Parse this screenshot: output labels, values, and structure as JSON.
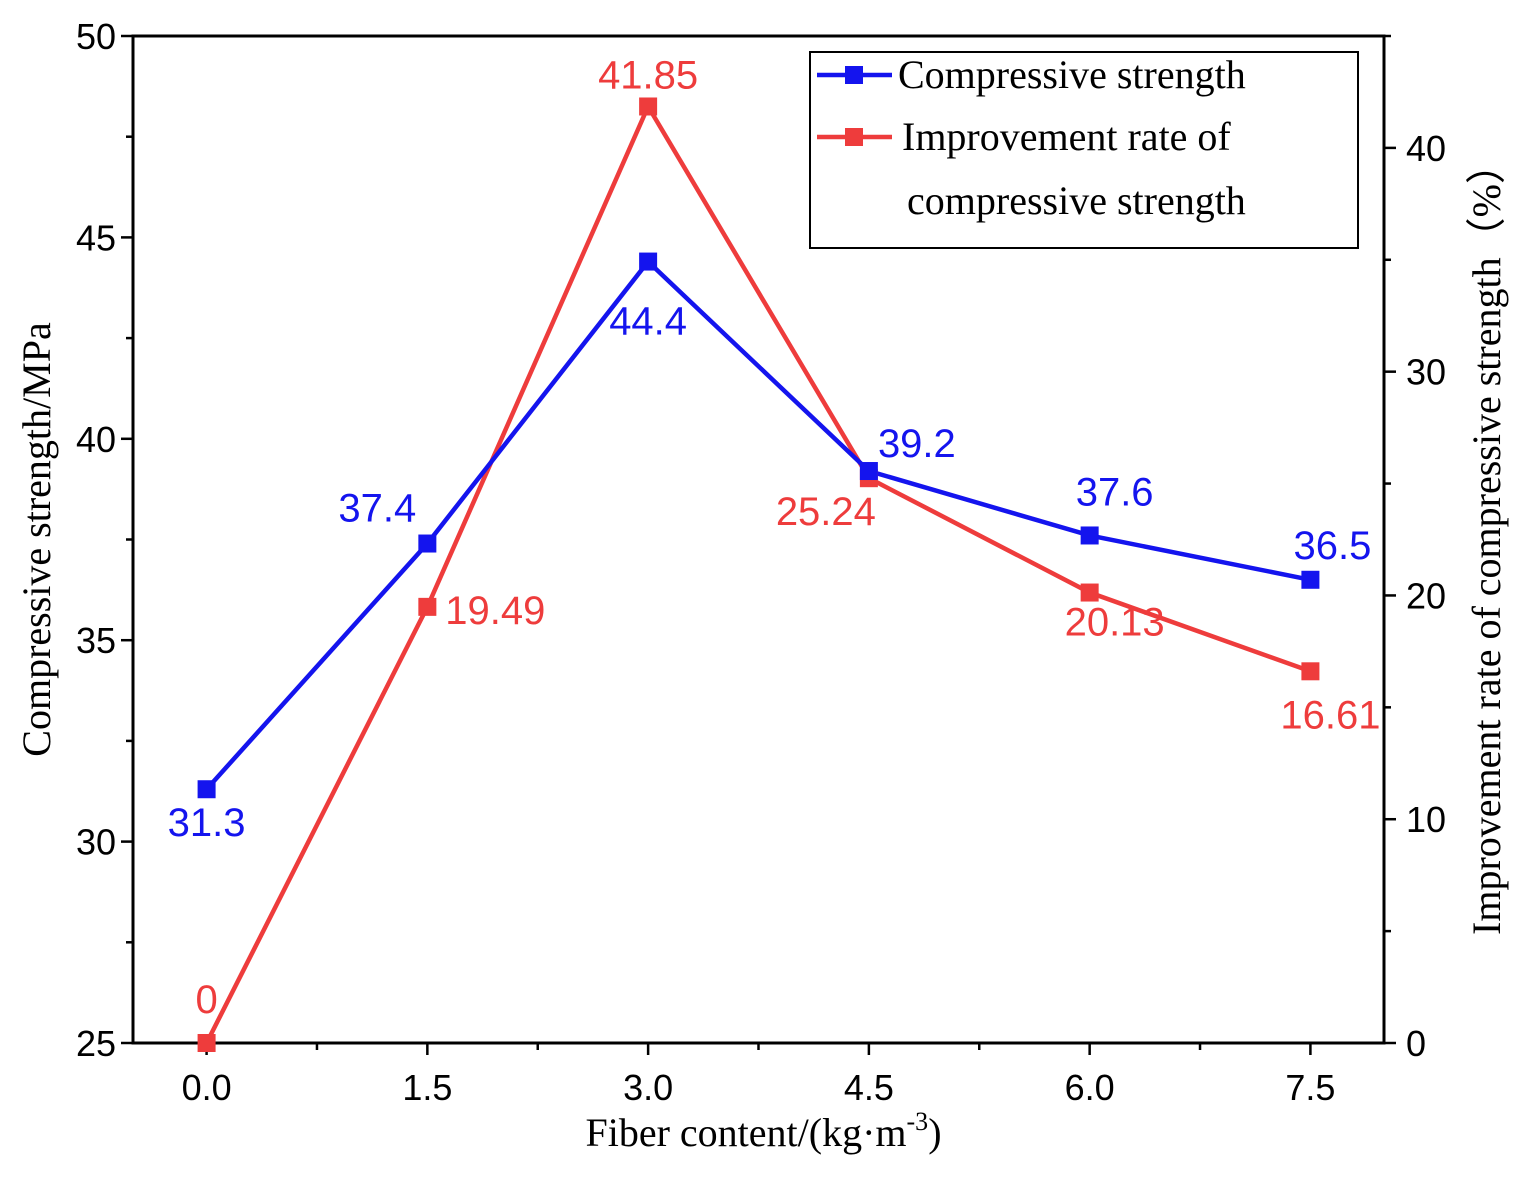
{
  "chart_data": {
    "type": "line",
    "x": [
      0.0,
      1.5,
      3.0,
      4.5,
      6.0,
      7.5
    ],
    "x_tick_labels": [
      "0.0",
      "1.5",
      "3.0",
      "4.5",
      "6.0",
      "7.5"
    ],
    "xlim": [
      -0.5,
      8.0
    ],
    "xlabel_main": "Fiber content/(kg·m",
    "xlabel_sup": "-3",
    "xlabel_end": ")",
    "ylabel_left": "Compressive strength/MPa",
    "ylim_left": [
      25,
      50
    ],
    "y_left_ticks": [
      25,
      30,
      35,
      40,
      45,
      50
    ],
    "ylabel_right": "Improvement rate of compressive strength（%）",
    "ylim_right": [
      0,
      45
    ],
    "y_right_ticks": [
      0,
      10,
      20,
      30,
      40
    ],
    "series": [
      {
        "name": "Compressive strength",
        "axis": "left",
        "color": "#1414ee",
        "values": [
          31.3,
          37.4,
          44.4,
          39.2,
          37.6,
          36.5
        ],
        "labels": [
          "31.3",
          "37.4",
          "44.4",
          "39.2",
          "37.6",
          "36.5"
        ]
      },
      {
        "name": "Improvement rate of compressive strength",
        "axis": "right",
        "color": "#ee3c3c",
        "values": [
          0,
          19.49,
          41.85,
          25.24,
          20.13,
          16.61
        ],
        "labels": [
          "0",
          "19.49",
          "41.85",
          "25.24",
          "20.13",
          "16.61"
        ]
      }
    ],
    "legend": {
      "position": "top-right",
      "entries": [
        {
          "lines": [
            "Compressive strength"
          ]
        },
        {
          "lines": [
            "Improvement rate of",
            "compressive strength"
          ]
        }
      ]
    }
  }
}
